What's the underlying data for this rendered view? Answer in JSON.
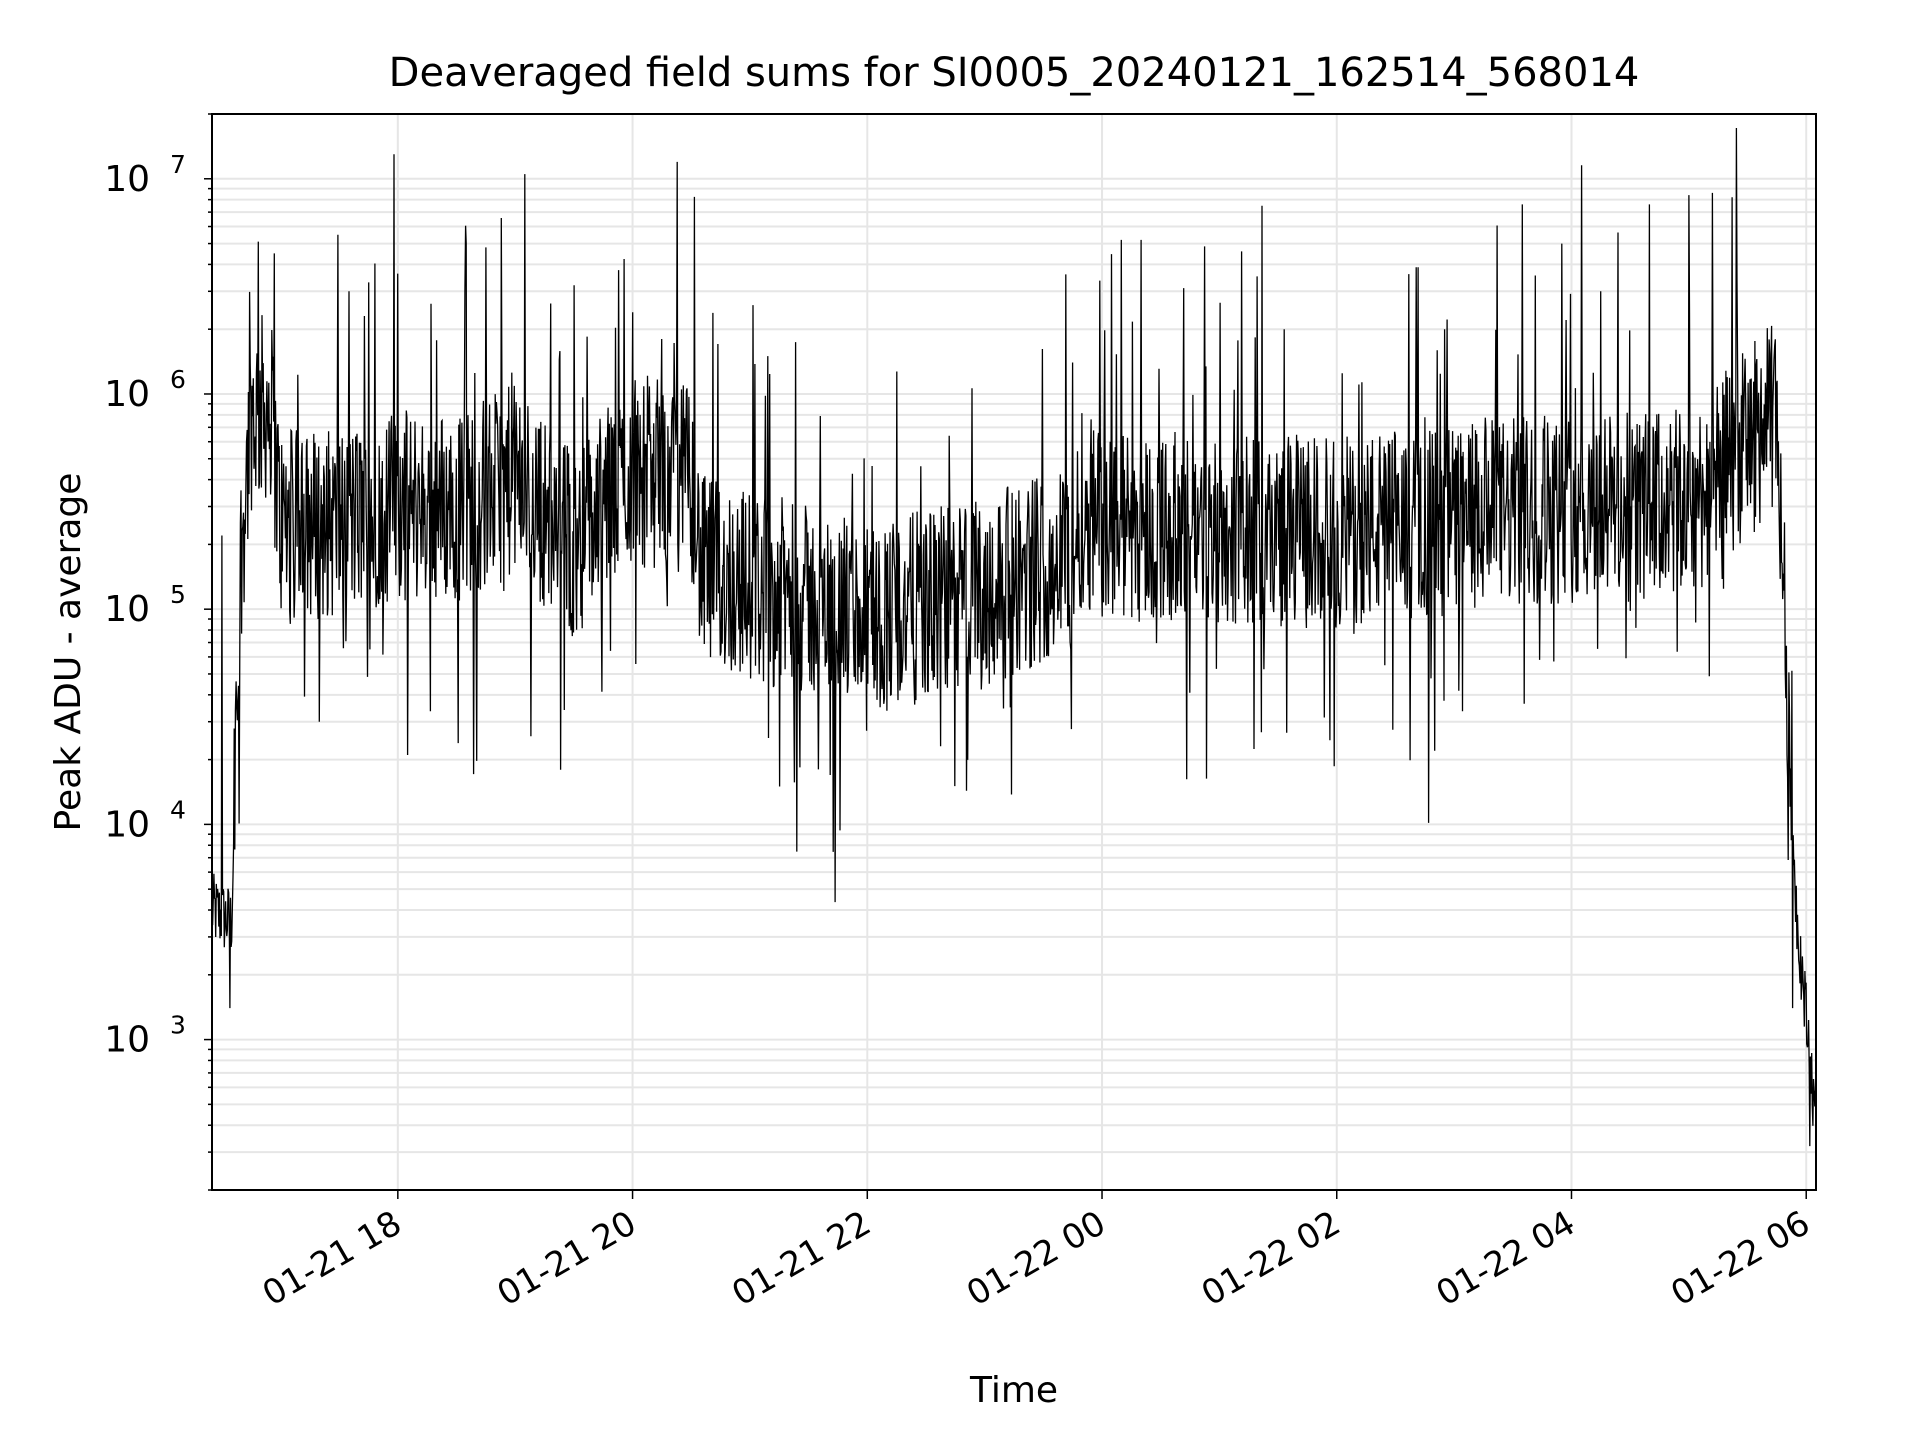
{
  "chart_data": {
    "type": "line",
    "title": "Deaveraged field sums for SI0005_20240121_162514_568014",
    "xlabel": "Time",
    "ylabel": "Peak ADU - average",
    "yscale": "log",
    "ylim": [
      200,
      20000000
    ],
    "xlim": [
      "2024-01-21 16:25",
      "2024-01-22 06:05"
    ],
    "grid": true,
    "line_color": "#000000",
    "grid_color": "#e6e6e6",
    "x_ticks": [
      {
        "value": "2024-01-21 18:00",
        "label": "01-21 18"
      },
      {
        "value": "2024-01-21 20:00",
        "label": "01-21 20"
      },
      {
        "value": "2024-01-21 22:00",
        "label": "01-21 22"
      },
      {
        "value": "2024-01-22 00:00",
        "label": "01-22 00"
      },
      {
        "value": "2024-01-22 02:00",
        "label": "01-22 02"
      },
      {
        "value": "2024-01-22 04:00",
        "label": "01-22 04"
      },
      {
        "value": "2024-01-22 06:00",
        "label": "01-22 06"
      }
    ],
    "y_ticks": [
      {
        "value": 1000,
        "base": "10",
        "exp": "3"
      },
      {
        "value": 10000,
        "base": "10",
        "exp": "4"
      },
      {
        "value": 100000,
        "base": "10",
        "exp": "5"
      },
      {
        "value": 1000000,
        "base": "10",
        "exp": "6"
      },
      {
        "value": 10000000,
        "base": "10",
        "exp": "7"
      }
    ],
    "series": [
      {
        "values_approx": [
          {
            "x": "2024-01-21 16:25",
            "y": 4000
          },
          {
            "x": "2024-01-21 16:35",
            "y": 3500
          },
          {
            "x": "2024-01-21 16:40",
            "y": 200000
          },
          {
            "x": "2024-01-21 16:45",
            "y": 800000
          },
          {
            "x": "2024-01-21 16:55",
            "y": 900000
          },
          {
            "x": "2024-01-21 17:00",
            "y": 250000
          },
          {
            "x": "2024-01-21 17:30",
            "y": 250000
          },
          {
            "x": "2024-01-21 18:00",
            "y": 300000
          },
          {
            "x": "2024-01-21 18:30",
            "y": 300000
          },
          {
            "x": "2024-01-21 19:00",
            "y": 400000
          },
          {
            "x": "2024-01-21 19:30",
            "y": 200000
          },
          {
            "x": "2024-01-21 20:00",
            "y": 450000
          },
          {
            "x": "2024-01-21 20:30",
            "y": 400000
          },
          {
            "x": "2024-01-21 20:35",
            "y": 150000
          },
          {
            "x": "2024-01-21 21:00",
            "y": 130000
          },
          {
            "x": "2024-01-21 22:00",
            "y": 90000
          },
          {
            "x": "2024-01-21 23:00",
            "y": 120000
          },
          {
            "x": "2024-01-21 23:45",
            "y": 180000
          },
          {
            "x": "2024-01-21 23:50",
            "y": 300000
          },
          {
            "x": "2024-01-22 00:00",
            "y": 250000
          },
          {
            "x": "2024-01-22 01:00",
            "y": 230000
          },
          {
            "x": "2024-01-22 02:00",
            "y": 230000
          },
          {
            "x": "2024-01-22 03:00",
            "y": 260000
          },
          {
            "x": "2024-01-22 04:00",
            "y": 300000
          },
          {
            "x": "2024-01-22 05:00",
            "y": 300000
          },
          {
            "x": "2024-01-22 05:30",
            "y": 600000
          },
          {
            "x": "2024-01-22 05:45",
            "y": 800000
          },
          {
            "x": "2024-01-22 05:55",
            "y": 4000
          },
          {
            "x": "2024-01-22 06:05",
            "y": 400
          }
        ],
        "spikes_approx": [
          {
            "x": "2024-01-21 16:30",
            "y": 220000
          },
          {
            "x": "2024-01-21 16:57",
            "y": 4500000
          },
          {
            "x": "2024-01-21 17:35",
            "y": 3000000
          },
          {
            "x": "2024-01-21 17:45",
            "y": 3300000
          },
          {
            "x": "2024-01-21 17:58",
            "y": 13000000
          },
          {
            "x": "2024-01-21 18:35",
            "y": 5000000
          },
          {
            "x": "2024-01-21 18:45",
            "y": 4800000
          },
          {
            "x": "2024-01-21 19:30",
            "y": 3200000
          },
          {
            "x": "2024-01-21 20:00",
            "y": 2400000
          },
          {
            "x": "2024-01-21 20:15",
            "y": 1800000
          },
          {
            "x": "2024-01-21 23:45",
            "y": 1400000
          },
          {
            "x": "2024-01-22 00:10",
            "y": 5200000
          },
          {
            "x": "2024-01-22 00:20",
            "y": 5200000
          },
          {
            "x": "2024-01-22 02:55",
            "y": 2000000
          },
          {
            "x": "2024-01-22 03:35",
            "y": 7600000
          },
          {
            "x": "2024-01-22 03:55",
            "y": 5000000
          },
          {
            "x": "2024-01-22 04:15",
            "y": 3000000
          },
          {
            "x": "2024-01-22 04:40",
            "y": 7600000
          },
          {
            "x": "2024-01-22 05:00",
            "y": 8400000
          },
          {
            "x": "2024-01-22 05:12",
            "y": 8600000
          },
          {
            "x": "2024-01-22 05:22",
            "y": 8200000
          }
        ],
        "dips_approx": [
          {
            "x": "2024-01-21 16:34",
            "y": 1400
          },
          {
            "x": "2024-01-21 17:20",
            "y": 30000
          },
          {
            "x": "2024-01-21 18:05",
            "y": 21000
          },
          {
            "x": "2024-01-21 19:25",
            "y": 34000
          },
          {
            "x": "2024-01-21 21:15",
            "y": 15000
          },
          {
            "x": "2024-01-21 21:35",
            "y": 18000
          },
          {
            "x": "2024-01-22 02:50",
            "y": 22000
          },
          {
            "x": "2024-01-22 05:53",
            "y": 1400
          },
          {
            "x": "2024-01-22 06:02",
            "y": 320
          }
        ]
      }
    ]
  }
}
